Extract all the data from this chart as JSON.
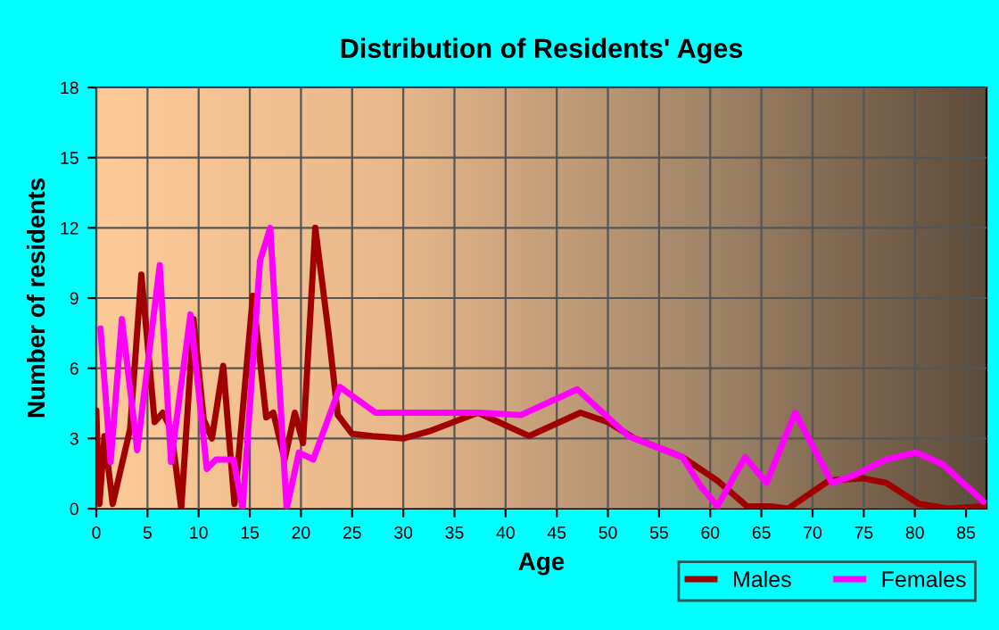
{
  "chart_data": {
    "type": "line",
    "title": "Distribution of Residents' Ages",
    "xlabel": "Age",
    "ylabel": "Number of residents",
    "xlim": [
      0,
      87
    ],
    "xticks": [
      0,
      5,
      10,
      15,
      20,
      25,
      30,
      35,
      40,
      45,
      50,
      55,
      60,
      65,
      70,
      75,
      80,
      85
    ],
    "ylim": [
      0,
      18
    ],
    "yticks": [
      0,
      3,
      6,
      9,
      12,
      15,
      18
    ],
    "grid": true,
    "legend": "bottom right",
    "line_style": "solid",
    "marker": "none",
    "series": [
      {
        "name": "Males",
        "color": "#a00000",
        "x": [
          0,
          0.3,
          0.8,
          1.6,
          3.3,
          4.4,
          5.7,
          6.5,
          7.3,
          8.3,
          9.5,
          10.5,
          11.3,
          12.4,
          13.5,
          15.3,
          16.6,
          17.3,
          18.4,
          19.4,
          20.2,
          21.4,
          22.7,
          23.6,
          25,
          27,
          30,
          32.5,
          37.3,
          42.3,
          47.3,
          50,
          52.6,
          57.3,
          60.7,
          63.6,
          65.9,
          67.6,
          71.6,
          74.9,
          77.2,
          80.4,
          83.3,
          86.7
        ],
        "values": [
          4.2,
          0.2,
          3.1,
          0.2,
          3.4,
          10,
          3.7,
          4.1,
          3.4,
          0,
          8.1,
          3.8,
          3,
          6.1,
          0.2,
          9.1,
          3.9,
          4.1,
          2.1,
          4.1,
          2.8,
          12,
          7.5,
          4,
          3.2,
          3.1,
          3,
          3.3,
          4.1,
          3.1,
          4.1,
          3.7,
          3,
          2.2,
          1.2,
          0.1,
          0.1,
          0,
          1.2,
          1.3,
          1.1,
          0.2,
          0,
          0.1
        ]
      },
      {
        "name": "Females",
        "color": "#ff00ff",
        "x": [
          0.4,
          1.4,
          2.5,
          4,
          6.2,
          7.3,
          9.2,
          10.8,
          11.7,
          13.4,
          14.3,
          16,
          17,
          18.6,
          19.8,
          21.2,
          23.8,
          27.3,
          32.2,
          37.4,
          41.5,
          47,
          50,
          52,
          57.3,
          59,
          60.7,
          63.4,
          65.5,
          68.3,
          71.9,
          73.9,
          77.2,
          80.1,
          82.7,
          86.7
        ],
        "values": [
          7.7,
          2,
          8.1,
          2.5,
          10.4,
          2,
          8.3,
          1.7,
          2.1,
          2.1,
          0,
          10.6,
          12,
          0,
          2.4,
          2.1,
          5.2,
          4.1,
          4.1,
          4.1,
          4,
          5.1,
          3.9,
          3.1,
          2.2,
          1,
          0.1,
          2.2,
          1.1,
          4.1,
          1.1,
          1.4,
          2.1,
          2.4,
          1.9,
          0.3
        ]
      }
    ]
  }
}
